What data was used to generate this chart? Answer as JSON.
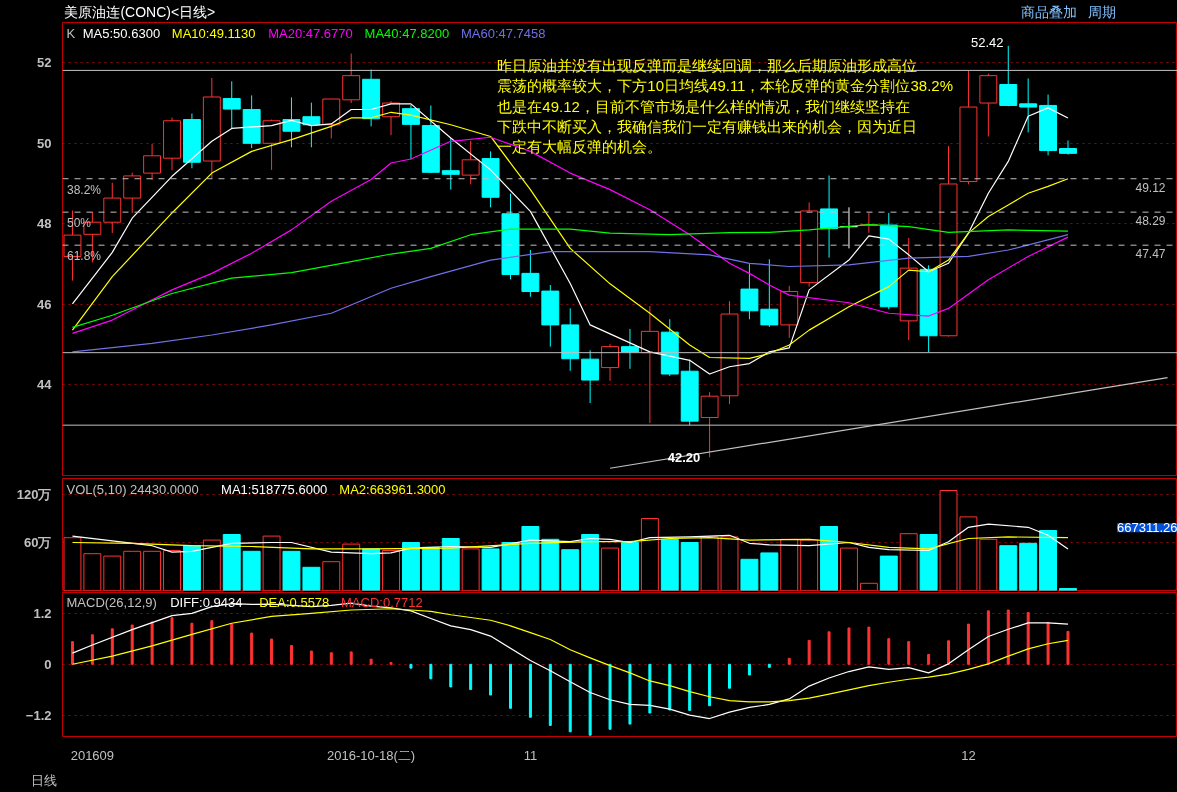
{
  "chart_data": [
    {
      "type": "candlestick",
      "title": "美原油连(CONC)<日线>",
      "categories": [
        null,
        null,
        null,
        null,
        null,
        null,
        null,
        null,
        null,
        null,
        null,
        null,
        null,
        null,
        null,
        null,
        null,
        null,
        null,
        null,
        null,
        null,
        null,
        null,
        null,
        null,
        null,
        null,
        null,
        null,
        null,
        null,
        null,
        null,
        null,
        null,
        null,
        null,
        null,
        null,
        null,
        null,
        null,
        null,
        null,
        null,
        null,
        null,
        null,
        null,
        null,
        null,
        null,
        null,
        null,
        null
      ],
      "ohlc": [
        [
          47.19,
          48.33,
          46.59,
          47.72
        ],
        [
          47.74,
          48.3,
          47.04,
          48.04
        ],
        [
          48.04,
          49.02,
          47.77,
          48.64
        ],
        [
          48.64,
          49.27,
          48.27,
          49.19
        ],
        [
          49.26,
          49.98,
          49.09,
          49.69
        ],
        [
          49.63,
          50.64,
          49.33,
          50.56
        ],
        [
          50.59,
          50.74,
          49.38,
          49.53
        ],
        [
          49.56,
          51.62,
          49.13,
          51.15
        ],
        [
          51.11,
          51.54,
          50.36,
          50.85
        ],
        [
          50.84,
          51.19,
          49.88,
          50.0
        ],
        [
          50.0,
          50.59,
          49.34,
          50.56
        ],
        [
          50.59,
          51.14,
          49.9,
          50.3
        ],
        [
          50.66,
          51.01,
          49.9,
          50.46
        ],
        [
          50.46,
          51.1,
          50.12,
          51.1
        ],
        [
          51.08,
          52.23,
          51.0,
          51.68
        ],
        [
          51.59,
          51.83,
          50.42,
          50.61
        ],
        [
          50.66,
          51.05,
          50.2,
          51.0
        ],
        [
          50.86,
          50.95,
          49.6,
          50.47
        ],
        [
          50.44,
          50.94,
          49.26,
          49.28
        ],
        [
          49.32,
          50.14,
          48.85,
          49.23
        ],
        [
          49.21,
          50.06,
          48.98,
          49.59
        ],
        [
          49.62,
          49.8,
          48.41,
          48.66
        ],
        [
          48.25,
          48.75,
          46.62,
          46.74
        ],
        [
          46.77,
          47.35,
          46.19,
          46.32
        ],
        [
          46.33,
          46.48,
          44.95,
          45.49
        ],
        [
          45.49,
          45.9,
          44.35,
          44.65
        ],
        [
          44.64,
          44.86,
          43.55,
          44.12
        ],
        [
          44.43,
          45.01,
          44.1,
          44.95
        ],
        [
          44.95,
          45.39,
          44.4,
          44.82
        ],
        [
          44.8,
          45.96,
          43.05,
          45.33
        ],
        [
          45.31,
          45.63,
          44.22,
          44.27
        ],
        [
          44.34,
          44.63,
          43.0,
          43.1
        ],
        [
          43.19,
          43.82,
          42.2,
          43.72
        ],
        [
          43.73,
          46.08,
          43.52,
          45.76
        ],
        [
          46.38,
          47.0,
          45.63,
          45.84
        ],
        [
          45.88,
          47.12,
          45.44,
          45.49
        ],
        [
          45.49,
          46.46,
          45.17,
          46.32
        ],
        [
          46.54,
          48.53,
          46.44,
          48.32
        ],
        [
          48.37,
          49.2,
          47.16,
          47.88
        ],
        [
          47.93,
          48.41,
          47.39,
          47.93
        ],
        [
          47.96,
          48.27,
          47.78,
          47.98
        ],
        [
          47.97,
          48.27,
          45.88,
          45.94
        ],
        [
          45.59,
          47.65,
          45.11,
          46.9
        ],
        [
          46.87,
          46.97,
          44.81,
          45.22
        ],
        [
          45.22,
          49.93,
          45.2,
          48.99
        ],
        [
          49.05,
          51.8,
          48.98,
          50.9
        ],
        [
          51.0,
          51.73,
          50.17,
          51.68
        ],
        [
          51.46,
          52.42,
          50.92,
          50.94
        ],
        [
          50.98,
          51.61,
          50.27,
          50.9
        ],
        [
          50.94,
          51.21,
          49.7,
          49.82
        ],
        [
          49.87,
          50.07,
          49.72,
          49.75
        ],
        null,
        null,
        null,
        null,
        null
      ],
      "colors": [
        "#ff3232",
        "#ff3232",
        "#ff3232",
        "#ff3232",
        "#ff3232",
        "#ff3232",
        "#00ffff",
        "#ff3232",
        "#00ffff",
        "#00ffff",
        "#ff3232",
        "#00ffff",
        "#00ffff",
        "#ff3232",
        "#ff3232",
        "#00ffff",
        "#ff3232",
        "#00ffff",
        "#00ffff",
        "#00ffff",
        "#ff3232",
        "#00ffff",
        "#00ffff",
        "#00ffff",
        "#00ffff",
        "#00ffff",
        "#00ffff",
        "#ff3232",
        "#00ffff",
        "#ff3232",
        "#00ffff",
        "#00ffff",
        "#ff3232",
        "#ff3232",
        "#00ffff",
        "#00ffff",
        "#ff3232",
        "#ff3232",
        "#00ffff",
        "#ffffff",
        "#ff3232",
        "#00ffff",
        "#ff3232",
        "#00ffff",
        "#ff3232",
        "#ff3232",
        "#ff3232",
        "#00ffff",
        "#00ffff",
        "#00ffff",
        "#00ffff",
        null,
        null,
        null,
        null,
        null
      ],
      "series": [
        {
          "name": "MA5:50.6300",
          "type": "line",
          "color": "#ffffff",
          "values": [
            46.01,
            null,
            47.29,
            48.14,
            null,
            49.18,
            null,
            50.05,
            50.37,
            null,
            50.44,
            50.57,
            50.44,
            50.48,
            50.84,
            50.84,
            50.98,
            50.98,
            null,
            50.13,
            null,
            49.34,
            null,
            48.31,
            null,
            46.52,
            45.49,
            null,
            null,
            44.82,
            null,
            44.61,
            44.27,
            44.45,
            44.53,
            44.82,
            44.92,
            46.36,
            null,
            47.1,
            47.7,
            47.62,
            47.23,
            46.81,
            47.02,
            47.77,
            48.76,
            49.55,
            50.67,
            50.88,
            50.63,
            null,
            null,
            null,
            null,
            null
          ]
        },
        {
          "name": "MA10:49.1130",
          "type": "line",
          "color": "#ffff00",
          "values": [
            45.36,
            null,
            46.69,
            null,
            null,
            48.27,
            null,
            49.26,
            null,
            49.8,
            null,
            50.09,
            null,
            50.42,
            50.63,
            50.63,
            50.77,
            50.7,
            null,
            50.46,
            null,
            50.17,
            null,
            48.85,
            null,
            47.39,
            null,
            46.51,
            null,
            45.78,
            null,
            44.99,
            44.68,
            null,
            44.66,
            44.78,
            44.99,
            45.36,
            null,
            45.94,
            null,
            46.44,
            46.85,
            46.81,
            47.1,
            47.77,
            48.18,
            48.47,
            48.76,
            48.93,
            49.12,
            null,
            null,
            null,
            null,
            null
          ]
        },
        {
          "name": "MA20:47.6770",
          "type": "line",
          "color": "#ff00ff",
          "values": [
            45.28,
            null,
            45.61,
            null,
            null,
            46.36,
            null,
            46.77,
            null,
            47.27,
            null,
            47.85,
            null,
            48.56,
            null,
            49.1,
            49.51,
            49.61,
            null,
            50.05,
            null,
            50.15,
            null,
            49.8,
            null,
            49.26,
            null,
            48.85,
            null,
            48.35,
            null,
            47.73,
            null,
            47.02,
            46.77,
            46.48,
            46.23,
            null,
            null,
            46.04,
            null,
            45.78,
            null,
            45.71,
            45.9,
            null,
            46.61,
            null,
            47.19,
            null,
            47.67,
            null,
            null,
            null,
            null,
            null
          ]
        },
        {
          "name": "MA40:47.8200",
          "type": "line",
          "color": "#00ff00",
          "values": [
            45.43,
            null,
            45.73,
            null,
            null,
            46.27,
            null,
            null,
            46.65,
            null,
            null,
            46.79,
            null,
            null,
            47.06,
            null,
            47.25,
            null,
            47.39,
            null,
            47.73,
            null,
            47.87,
            null,
            null,
            47.87,
            null,
            47.77,
            null,
            null,
            47.73,
            null,
            null,
            47.78,
            null,
            47.79,
            null,
            47.85,
            null,
            null,
            47.98,
            null,
            47.93,
            null,
            47.79,
            null,
            null,
            47.85,
            null,
            null,
            47.82,
            null,
            null,
            null,
            null,
            null
          ]
        },
        {
          "name": "MA60:47.7458",
          "type": "line",
          "color": "#7070e8",
          "values": [
            44.82,
            null,
            null,
            null,
            45.03,
            null,
            null,
            45.24,
            null,
            null,
            45.49,
            null,
            null,
            45.78,
            null,
            null,
            46.4,
            null,
            46.69,
            null,
            null,
            47.1,
            null,
            null,
            47.31,
            null,
            null,
            null,
            null,
            47.31,
            null,
            null,
            47.23,
            null,
            47.02,
            null,
            46.94,
            null,
            null,
            46.98,
            null,
            null,
            47.15,
            null,
            null,
            47.19,
            null,
            47.35,
            null,
            null,
            47.73,
            null,
            null,
            null,
            null,
            null
          ]
        },
        {
          "type": "line",
          "color": "#c0c0c0",
          "values": [
            null,
            null,
            null,
            null,
            null,
            null,
            null,
            null,
            null,
            null,
            null,
            null,
            null,
            null,
            null,
            null,
            null,
            null,
            null,
            null,
            null,
            null,
            null,
            null,
            null,
            null,
            null,
            41.93,
            null,
            null,
            null,
            null,
            null,
            null,
            null,
            null,
            null,
            null,
            null,
            null,
            null,
            null,
            null,
            null,
            null,
            null,
            null,
            null,
            null,
            null,
            null,
            null,
            null,
            null,
            null,
            44.18
          ]
        }
      ],
      "ylim": [
        41.75,
        53.0
      ],
      "yticks": [
        44,
        46,
        48,
        50,
        52
      ],
      "grid": "y",
      "legend": "top left",
      "tick_labels": "y",
      "ref_lines": [
        {
          "axis": "y",
          "value": 49.12,
          "label": "49.12",
          "color": "#c0c0c0",
          "line_style": "dashed"
        },
        {
          "axis": "y",
          "value": 48.29,
          "label": "48.29",
          "color": "#c0c0c0",
          "line_style": "dashed"
        },
        {
          "axis": "y",
          "value": 47.47,
          "label": "47.47",
          "color": "#c0c0c0",
          "line_style": "dashed"
        },
        {
          "axis": "y",
          "value": 51.81,
          "color": "#c0c0c0",
          "line_style": "solid"
        },
        {
          "axis": "y",
          "value": 44.8,
          "color": "#c0c0c0",
          "line_style": "solid"
        },
        {
          "axis": "y",
          "value": 43.0,
          "color": "#c0c0c0",
          "line_style": "solid"
        }
      ],
      "annotations": [
        "K",
        "昨日原油并没有出现反弹而是继续回调，那么后期原油形成高位",
        "震荡的概率较大，下方10日均线49.11，本轮反弹的黄金分割位38.2%",
        "也是在49.12，目前不管市场是什么样的情况，我们继续坚持在",
        "下跌中不断买入，我确信我们一定有赚钱出来的机会，因为近日",
        "一定有大幅反弹的机会。",
        {
          "text": "38.2%",
          "y": 49.12
        },
        {
          "text": "50%",
          "y": 48.29
        },
        {
          "text": "61.8%",
          "y": 47.47
        },
        "52.42",
        {
          "text": "42.20",
          "y": 42.2
        },
        "商品叠加",
        "周期"
      ]
    },
    {
      "type": "bar",
      "categories": [
        null,
        null,
        null,
        null,
        null,
        null,
        null,
        null,
        null,
        null,
        null,
        null,
        null,
        null,
        null,
        null,
        null,
        null,
        null,
        null,
        null,
        null,
        null,
        null,
        null,
        null,
        null,
        null,
        null,
        null,
        null,
        null,
        null,
        null,
        null,
        null,
        null,
        null,
        null,
        null,
        null,
        null,
        null,
        null,
        null,
        null,
        null,
        null,
        null,
        null,
        null,
        null,
        null,
        null,
        null,
        null
      ],
      "series": [
        {
          "type": "bar",
          "values": [
            66,
            46,
            43,
            49,
            49,
            50,
            56,
            63,
            70,
            49,
            68,
            49,
            29,
            36,
            58,
            52,
            50,
            60,
            54,
            65,
            52,
            52,
            60,
            80,
            64,
            51,
            70,
            53,
            60,
            90,
            64,
            60,
            67,
            67,
            39,
            47,
            64,
            63,
            80,
            53,
            9,
            43,
            71,
            70,
            125,
            92,
            64,
            56,
            59,
            75,
            2.443,
            null,
            null,
            null,
            null,
            null
          ],
          "colors": [
            "#ff3232",
            "#ff3232",
            "#ff3232",
            "#ff3232",
            "#ff3232",
            "#ff3232",
            "#00ffff",
            "#ff3232",
            "#00ffff",
            "#00ffff",
            "#ff3232",
            "#00ffff",
            "#00ffff",
            "#ff3232",
            "#ff3232",
            "#00ffff",
            "#ff3232",
            "#00ffff",
            "#00ffff",
            "#00ffff",
            "#ff3232",
            "#00ffff",
            "#00ffff",
            "#00ffff",
            "#00ffff",
            "#00ffff",
            "#00ffff",
            "#ff3232",
            "#00ffff",
            "#ff3232",
            "#00ffff",
            "#00ffff",
            "#ff3232",
            "#ff3232",
            "#00ffff",
            "#00ffff",
            "#ff3232",
            "#ff3232",
            "#00ffff",
            "#ff3232",
            "#ff3232",
            "#00ffff",
            "#ff3232",
            "#00ffff",
            "#ff3232",
            "#ff3232",
            "#ff3232",
            "#00ffff",
            "#00ffff",
            "#00ffff",
            "#00ffff",
            null,
            null,
            null,
            null,
            null
          ]
        },
        {
          "name": "MA1:518775.6000",
          "type": "line",
          "color": "#ffffff",
          "values": [
            68,
            null,
            62,
            null,
            56,
            48,
            49,
            null,
            59,
            null,
            60,
            60,
            null,
            48,
            null,
            46,
            47,
            53,
            null,
            55,
            null,
            54,
            null,
            63,
            null,
            61,
            65,
            64,
            60,
            66,
            null,
            67,
            null,
            69,
            59,
            57,
            null,
            56,
            null,
            60,
            54,
            51,
            null,
            50,
            61,
            79,
            83,
            null,
            79,
            69,
            52,
            null,
            null,
            null,
            null,
            null
          ]
        },
        {
          "name": "MA2:663961.3000",
          "type": "line",
          "color": "#ffff00",
          "values": [
            60,
            null,
            null,
            59,
            null,
            null,
            56,
            null,
            null,
            55,
            null,
            null,
            52,
            null,
            null,
            52,
            null,
            null,
            null,
            53,
            null,
            null,
            null,
            59,
            null,
            null,
            61,
            null,
            61,
            null,
            65,
            null,
            66,
            null,
            63,
            null,
            null,
            64,
            null,
            60,
            null,
            54,
            null,
            52,
            null,
            65,
            null,
            67,
            null,
            null,
            66,
            null,
            null,
            null,
            null,
            null
          ]
        }
      ],
      "ylim": [
        0,
        140
      ],
      "yticks": [
        {
          "value": 60,
          "label": "60万"
        },
        {
          "value": 120,
          "label": "120万"
        }
      ],
      "grid": "y",
      "legend": "top left",
      "tick_labels": "y",
      "annotations": [
        "VOL(5,10) 24430.0000",
        "667311.26"
      ]
    },
    {
      "type": "bar",
      "categories": [
        null,
        "201609",
        null,
        null,
        null,
        null,
        null,
        null,
        null,
        null,
        null,
        null,
        null,
        null,
        null,
        "2016-10-18(二)",
        null,
        null,
        null,
        null,
        null,
        null,
        null,
        "11",
        null,
        null,
        null,
        null,
        null,
        null,
        null,
        null,
        null,
        null,
        null,
        null,
        null,
        null,
        null,
        null,
        null,
        null,
        null,
        null,
        null,
        "12",
        null,
        null,
        null,
        null,
        null,
        null,
        null,
        null,
        null,
        null
      ],
      "series": [
        {
          "name": "DIFF:0.9434",
          "type": "line",
          "color": "#ffffff",
          "values": [
            0.26,
            0.45,
            null,
            0.81,
            null,
            1.14,
            1.19,
            1.35,
            1.42,
            1.4,
            1.41,
            1.38,
            1.35,
            1.38,
            1.43,
            1.36,
            1.32,
            1.25,
            1.07,
            0.9,
            0.81,
            0.66,
            null,
            0.09,
            -0.15,
            -0.41,
            -0.66,
            -0.83,
            -0.94,
            -0.96,
            -1.05,
            -1.19,
            -1.27,
            -1.12,
            -1.01,
            -0.94,
            -0.81,
            -0.51,
            -0.32,
            -0.17,
            -0.06,
            -0.12,
            -0.08,
            -0.2,
            0.01,
            0.34,
            0.65,
            0.82,
            0.97,
            0.97,
            0.94,
            null,
            null,
            null,
            null,
            null
          ]
        },
        {
          "name": "DEA:0.5578",
          "type": "line",
          "color": "#ffff00",
          "values": [
            0,
            null,
            0.19,
            null,
            0.43,
            null,
            0.7,
            null,
            0.96,
            null,
            1.12,
            null,
            1.19,
            null,
            1.27,
            null,
            1.3,
            1.27,
            1.24,
            1.16,
            null,
            1.03,
            0.9,
            0.74,
            0.58,
            0.34,
            0.15,
            -0.03,
            -0.2,
            -0.39,
            -0.5,
            -0.64,
            -0.76,
            -0.85,
            -0.88,
            -0.88,
            -0.85,
            -0.79,
            -0.7,
            -0.6,
            -0.5,
            -0.42,
            -0.35,
            -0.3,
            -0.23,
            -0.12,
            0.01,
            0.19,
            0.36,
            0.48,
            0.56,
            null,
            null,
            null,
            null,
            null
          ]
        },
        {
          "name": "MACD:0.7712",
          "type": "bar",
          "values": [
            0.53,
            0.69,
            0.83,
            0.92,
            0.99,
            1.09,
            0.96,
            1.02,
            0.94,
            0.73,
            0.59,
            0.44,
            0.31,
            0.27,
            0.29,
            0.12,
            0.04,
            -0.09,
            -0.34,
            -0.53,
            -0.59,
            -0.72,
            -1.03,
            -1.24,
            -1.43,
            -1.58,
            -1.66,
            -1.52,
            -1.4,
            -1.14,
            -1.07,
            -1.08,
            -0.97,
            -0.56,
            -0.25,
            -0.07,
            0.14,
            0.56,
            0.76,
            0.85,
            0.87,
            0.6,
            0.53,
            0.23,
            0.55,
            0.94,
            1.25,
            1.27,
            1.21,
            0.98,
            0.77,
            null,
            null,
            null,
            null,
            null
          ],
          "colors": [
            "#ff3232",
            "#ff3232",
            "#ff3232",
            "#ff3232",
            "#ff3232",
            "#ff3232",
            "#ff3232",
            "#ff3232",
            "#ff3232",
            "#ff3232",
            "#ff3232",
            "#ff3232",
            "#ff3232",
            "#ff3232",
            "#ff3232",
            "#ff3232",
            "#ff3232",
            "#00ffff",
            "#00ffff",
            "#00ffff",
            "#00ffff",
            "#00ffff",
            "#00ffff",
            "#00ffff",
            "#00ffff",
            "#00ffff",
            "#00ffff",
            "#00ffff",
            "#00ffff",
            "#00ffff",
            "#00ffff",
            "#00ffff",
            "#00ffff",
            "#00ffff",
            "#00ffff",
            "#00ffff",
            "#ff3232",
            "#ff3232",
            "#ff3232",
            "#ff3232",
            "#ff3232",
            "#ff3232",
            "#ff3232",
            "#ff3232",
            "#ff3232",
            "#ff3232",
            "#ff3232",
            "#ff3232",
            "#ff3232",
            "#ff3232",
            "#ff3232",
            null,
            null,
            null,
            null,
            null
          ]
        }
      ],
      "ylim": [
        -1.69,
        1.68
      ],
      "yticks": [
        -1.2,
        0,
        1.2
      ],
      "grid": "y",
      "legend": "top left",
      "annotations": [
        "MACD(26,12,9)",
        "日线"
      ]
    }
  ]
}
